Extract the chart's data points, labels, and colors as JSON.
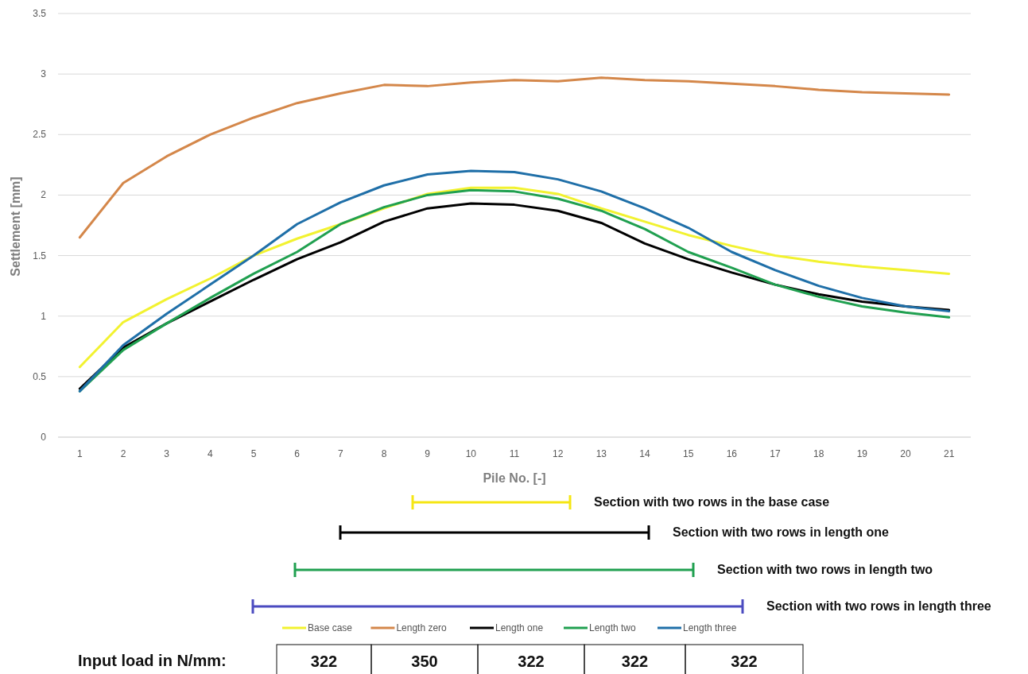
{
  "chart_data": {
    "type": "line",
    "xlabel": "Pile No. [-]",
    "ylabel": "Settlement [mm]",
    "x": [
      1,
      2,
      3,
      4,
      5,
      6,
      7,
      8,
      9,
      10,
      11,
      12,
      13,
      14,
      15,
      16,
      17,
      18,
      19,
      20,
      21
    ],
    "xlim": [
      0.5,
      21.5
    ],
    "xticks": [
      1,
      2,
      3,
      4,
      5,
      6,
      7,
      8,
      9,
      10,
      11,
      12,
      13,
      14,
      15,
      16,
      17,
      18,
      19,
      20,
      21
    ],
    "series": [
      {
        "name": "Base case",
        "color": "#f2f230",
        "values": [
          0.58,
          0.95,
          1.14,
          1.31,
          1.5,
          1.64,
          1.76,
          1.89,
          2.01,
          2.06,
          2.06,
          2.01,
          1.89,
          1.78,
          1.67,
          1.58,
          1.5,
          1.45,
          1.41,
          1.38,
          1.35
        ]
      },
      {
        "name": "Length zero",
        "color": "#d4874a",
        "values": [
          1.65,
          2.1,
          2.32,
          2.5,
          2.64,
          2.76,
          2.84,
          2.91,
          2.9,
          2.93,
          2.95,
          2.94,
          2.97,
          2.95,
          2.94,
          2.92,
          2.9,
          2.87,
          2.85,
          2.84,
          2.83
        ]
      },
      {
        "name": "Length one",
        "color": "#000000",
        "values": [
          0.4,
          0.74,
          0.94,
          1.12,
          1.3,
          1.47,
          1.61,
          1.78,
          1.89,
          1.93,
          1.92,
          1.87,
          1.77,
          1.6,
          1.47,
          1.36,
          1.26,
          1.18,
          1.12,
          1.08,
          1.05
        ]
      },
      {
        "name": "Length two",
        "color": "#20a050",
        "values": [
          0.38,
          0.72,
          0.94,
          1.15,
          1.35,
          1.53,
          1.76,
          1.9,
          2.0,
          2.04,
          2.03,
          1.97,
          1.87,
          1.72,
          1.53,
          1.4,
          1.26,
          1.16,
          1.08,
          1.03,
          0.99
        ]
      },
      {
        "name": "Length three",
        "color": "#1f6fa8",
        "values": [
          0.38,
          0.76,
          1.02,
          1.26,
          1.5,
          1.76,
          1.94,
          2.08,
          2.17,
          2.2,
          2.19,
          2.13,
          2.03,
          1.89,
          1.73,
          1.53,
          1.38,
          1.25,
          1.15,
          1.08,
          1.04
        ]
      }
    ],
    "ylim": [
      0,
      3.5
    ],
    "yticks": [
      0,
      0.5,
      1,
      1.5,
      2,
      2.5,
      3,
      3.5
    ],
    "grid": "y",
    "legend": "bottom",
    "line_style": "solid",
    "marker": "none",
    "annotations": [
      "Section with two rows in the base case",
      "Section with two rows in length one",
      "Section with two rows in length two",
      "Section with two rows in length three",
      "Input load in N/mm:",
      "322",
      "350",
      "322",
      "322",
      "322"
    ]
  }
}
